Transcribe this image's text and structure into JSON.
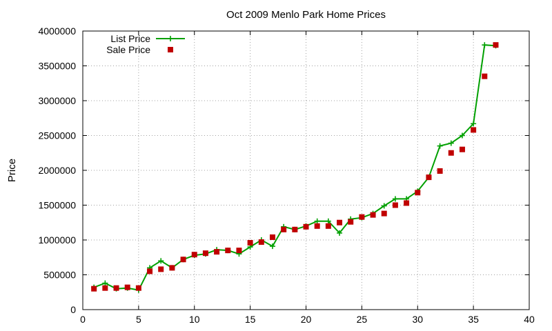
{
  "chart_data": {
    "type": "line",
    "title": "Oct 2009 Menlo Park Home Prices",
    "xlabel": "",
    "ylabel": "Price",
    "xlim": [
      0,
      40
    ],
    "ylim": [
      0,
      4000000
    ],
    "xticks": [
      0,
      5,
      10,
      15,
      20,
      25,
      30,
      35,
      40
    ],
    "yticks": [
      0,
      500000,
      1000000,
      1500000,
      2000000,
      2500000,
      3000000,
      3500000,
      4000000
    ],
    "grid": true,
    "legend_position": "top-left",
    "series": [
      {
        "name": "List Price",
        "style": "line-with-plus-markers",
        "color": "#00a000",
        "x": [
          1,
          2,
          3,
          4,
          5,
          6,
          7,
          8,
          9,
          10,
          11,
          12,
          13,
          14,
          15,
          16,
          17,
          18,
          19,
          20,
          21,
          22,
          23,
          24,
          25,
          26,
          27,
          28,
          29,
          30,
          31,
          32,
          33,
          34,
          35,
          36,
          37
        ],
        "y": [
          320000,
          380000,
          300000,
          310000,
          280000,
          600000,
          700000,
          600000,
          720000,
          780000,
          800000,
          860000,
          850000,
          800000,
          900000,
          1000000,
          910000,
          1190000,
          1150000,
          1200000,
          1270000,
          1270000,
          1100000,
          1300000,
          1320000,
          1380000,
          1490000,
          1590000,
          1590000,
          1700000,
          1900000,
          2350000,
          2390000,
          2500000,
          2670000,
          3800000,
          3790000
        ]
      },
      {
        "name": "Sale Price",
        "style": "square-markers",
        "color": "#c00000",
        "x": [
          1,
          2,
          3,
          4,
          5,
          6,
          7,
          8,
          9,
          10,
          11,
          12,
          13,
          14,
          15,
          16,
          17,
          18,
          19,
          20,
          21,
          22,
          23,
          24,
          25,
          26,
          27,
          28,
          29,
          30,
          31,
          32,
          33,
          34,
          35,
          36,
          37
        ],
        "y": [
          300000,
          310000,
          310000,
          320000,
          310000,
          550000,
          580000,
          600000,
          720000,
          790000,
          810000,
          830000,
          850000,
          850000,
          960000,
          970000,
          1040000,
          1150000,
          1150000,
          1190000,
          1200000,
          1200000,
          1250000,
          1260000,
          1330000,
          1360000,
          1380000,
          1500000,
          1530000,
          1680000,
          1900000,
          1990000,
          2250000,
          2300000,
          2580000,
          3350000,
          3800000
        ]
      }
    ]
  }
}
